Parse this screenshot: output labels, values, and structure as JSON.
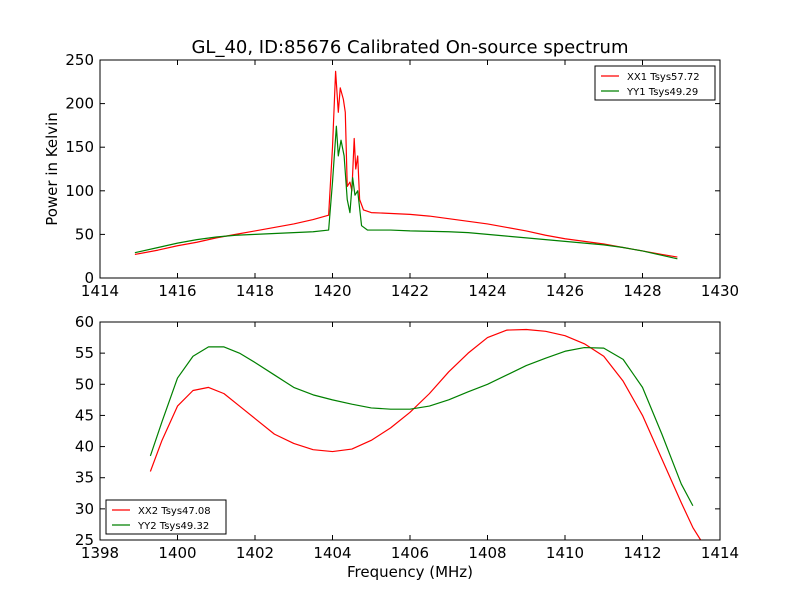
{
  "chart_data": [
    {
      "type": "line",
      "title": "GL_40, ID:85676 Calibrated On-source spectrum",
      "xlabel": "",
      "ylabel": "Power in Kelvin",
      "xlim": [
        1414,
        1430
      ],
      "ylim": [
        0,
        250
      ],
      "xticks": [
        1414,
        1416,
        1418,
        1420,
        1422,
        1424,
        1426,
        1428,
        1430
      ],
      "yticks": [
        0,
        50,
        100,
        150,
        200,
        250
      ],
      "legend_position": "top-right",
      "grid": false,
      "series": [
        {
          "name": "XX1 Tsys57.72",
          "color": "#ff0000",
          "points": [
            [
              1414.9,
              27
            ],
            [
              1415.5,
              32
            ],
            [
              1416,
              37
            ],
            [
              1416.5,
              41
            ],
            [
              1417,
              46
            ],
            [
              1417.5,
              50
            ],
            [
              1418,
              54
            ],
            [
              1418.5,
              58
            ],
            [
              1419,
              62
            ],
            [
              1419.5,
              67
            ],
            [
              1419.9,
              72
            ],
            [
              1420.0,
              150
            ],
            [
              1420.08,
              237
            ],
            [
              1420.15,
              190
            ],
            [
              1420.2,
              218
            ],
            [
              1420.28,
              205
            ],
            [
              1420.33,
              190
            ],
            [
              1420.38,
              105
            ],
            [
              1420.45,
              110
            ],
            [
              1420.5,
              100
            ],
            [
              1420.56,
              160
            ],
            [
              1420.6,
              125
            ],
            [
              1420.65,
              140
            ],
            [
              1420.7,
              90
            ],
            [
              1420.8,
              78
            ],
            [
              1421,
              75
            ],
            [
              1422,
              73
            ],
            [
              1422.5,
              71
            ],
            [
              1423,
              68
            ],
            [
              1423.5,
              65
            ],
            [
              1424,
              62
            ],
            [
              1424.5,
              58
            ],
            [
              1425,
              54
            ],
            [
              1425.5,
              49
            ],
            [
              1426,
              45
            ],
            [
              1426.5,
              42
            ],
            [
              1427,
              39
            ],
            [
              1427.5,
              35
            ],
            [
              1428,
              31
            ],
            [
              1428.5,
              27
            ],
            [
              1428.9,
              24
            ]
          ]
        },
        {
          "name": "YY1 Tsys49.29",
          "color": "#008000",
          "points": [
            [
              1414.9,
              29
            ],
            [
              1415.5,
              35
            ],
            [
              1416,
              40
            ],
            [
              1416.5,
              44
            ],
            [
              1417,
              47
            ],
            [
              1417.5,
              49
            ],
            [
              1418,
              50
            ],
            [
              1418.5,
              51
            ],
            [
              1419,
              52
            ],
            [
              1419.5,
              53
            ],
            [
              1419.9,
              55
            ],
            [
              1420.0,
              110
            ],
            [
              1420.1,
              174
            ],
            [
              1420.15,
              140
            ],
            [
              1420.22,
              158
            ],
            [
              1420.3,
              140
            ],
            [
              1420.38,
              90
            ],
            [
              1420.45,
              75
            ],
            [
              1420.52,
              115
            ],
            [
              1420.58,
              95
            ],
            [
              1420.65,
              100
            ],
            [
              1420.75,
              60
            ],
            [
              1420.9,
              55
            ],
            [
              1421.5,
              55
            ],
            [
              1422,
              54
            ],
            [
              1423,
              53
            ],
            [
              1423.5,
              52
            ],
            [
              1424,
              50
            ],
            [
              1424.5,
              48
            ],
            [
              1425,
              46
            ],
            [
              1425.5,
              44
            ],
            [
              1426,
              42
            ],
            [
              1426.5,
              40
            ],
            [
              1427,
              38
            ],
            [
              1427.5,
              35
            ],
            [
              1428,
              31
            ],
            [
              1428.5,
              26
            ],
            [
              1428.9,
              22
            ]
          ]
        }
      ]
    },
    {
      "type": "line",
      "title": "",
      "xlabel": "Frequency (MHz)",
      "ylabel": "",
      "xlim": [
        1398,
        1414
      ],
      "ylim": [
        25,
        60
      ],
      "xticks": [
        1398,
        1400,
        1402,
        1404,
        1406,
        1408,
        1410,
        1412,
        1414
      ],
      "yticks": [
        25,
        30,
        35,
        40,
        45,
        50,
        55,
        60
      ],
      "legend_position": "bottom-left",
      "grid": false,
      "series": [
        {
          "name": "XX2 Tsys47.08",
          "color": "#ff0000",
          "points": [
            [
              1399.3,
              36
            ],
            [
              1399.6,
              41
            ],
            [
              1400,
              46.5
            ],
            [
              1400.4,
              49
            ],
            [
              1400.8,
              49.5
            ],
            [
              1401.2,
              48.5
            ],
            [
              1401.6,
              46.5
            ],
            [
              1402,
              44.5
            ],
            [
              1402.5,
              42
            ],
            [
              1403,
              40.5
            ],
            [
              1403.5,
              39.5
            ],
            [
              1404,
              39.2
            ],
            [
              1404.5,
              39.6
            ],
            [
              1405,
              41
            ],
            [
              1405.5,
              43
            ],
            [
              1406,
              45.5
            ],
            [
              1406.5,
              48.5
            ],
            [
              1407,
              52
            ],
            [
              1407.5,
              55
            ],
            [
              1408,
              57.5
            ],
            [
              1408.5,
              58.7
            ],
            [
              1409,
              58.8
            ],
            [
              1409.5,
              58.5
            ],
            [
              1410,
              57.8
            ],
            [
              1410.5,
              56.5
            ],
            [
              1411,
              54.5
            ],
            [
              1411.5,
              50.5
            ],
            [
              1412,
              45
            ],
            [
              1412.5,
              38
            ],
            [
              1413,
              31
            ],
            [
              1413.3,
              27
            ],
            [
              1413.5,
              25
            ]
          ]
        },
        {
          "name": "YY2 Tsys49.32",
          "color": "#008000",
          "points": [
            [
              1399.3,
              38.5
            ],
            [
              1399.6,
              44
            ],
            [
              1400,
              51
            ],
            [
              1400.4,
              54.5
            ],
            [
              1400.8,
              56
            ],
            [
              1401.2,
              56
            ],
            [
              1401.6,
              55
            ],
            [
              1402,
              53.5
            ],
            [
              1402.5,
              51.5
            ],
            [
              1403,
              49.5
            ],
            [
              1403.5,
              48.3
            ],
            [
              1404,
              47.5
            ],
            [
              1404.5,
              46.8
            ],
            [
              1405,
              46.2
            ],
            [
              1405.5,
              46
            ],
            [
              1406,
              46
            ],
            [
              1406.5,
              46.5
            ],
            [
              1407,
              47.5
            ],
            [
              1407.5,
              48.8
            ],
            [
              1408,
              50
            ],
            [
              1408.5,
              51.5
            ],
            [
              1409,
              53
            ],
            [
              1409.5,
              54.2
            ],
            [
              1410,
              55.3
            ],
            [
              1410.5,
              55.9
            ],
            [
              1411,
              55.8
            ],
            [
              1411.5,
              54
            ],
            [
              1412,
              49.5
            ],
            [
              1412.5,
              42
            ],
            [
              1413,
              34
            ],
            [
              1413.3,
              30.5
            ]
          ]
        }
      ]
    }
  ]
}
